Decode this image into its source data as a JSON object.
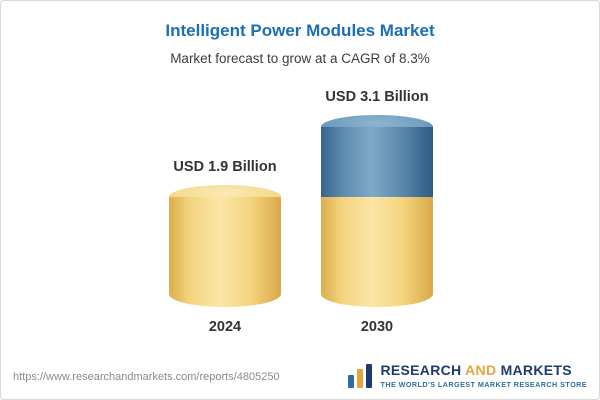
{
  "title": "Intelligent Power Modules Market",
  "subtitle": "Market forecast to grow at a CAGR of 8.3%",
  "chart_data": {
    "type": "bar",
    "categories": [
      "2024",
      "2030"
    ],
    "values": [
      1.9,
      3.1
    ],
    "unit": "USD Billion",
    "value_labels": [
      "USD 1.9 Billion",
      "USD 3.1 Billion"
    ],
    "title": "Intelligent Power Modules Market",
    "subtitle": "Market forecast to grow at a CAGR of 8.3%",
    "cagr": "8.3%",
    "bar_style": "3d-cylinder",
    "colors": {
      "base_segment": "#F5D57F",
      "growth_segment": "#5A88AD"
    },
    "notes": "2030 bar shows base (1.9) in yellow plus growth (1.2) in blue on top"
  },
  "bars": {
    "b2024": {
      "label": "USD 1.9 Billion",
      "year": "2024"
    },
    "b2030": {
      "label": "USD 3.1 Billion",
      "year": "2030"
    }
  },
  "footer": {
    "url": "https://www.researchandmarkets.com/reports/4805250",
    "logo": {
      "icon": "bar-chart-logo",
      "research": "RESEARCH",
      "and": "AND",
      "markets": "MARKETS",
      "tagline": "THE WORLD'S LARGEST MARKET RESEARCH STORE"
    }
  }
}
